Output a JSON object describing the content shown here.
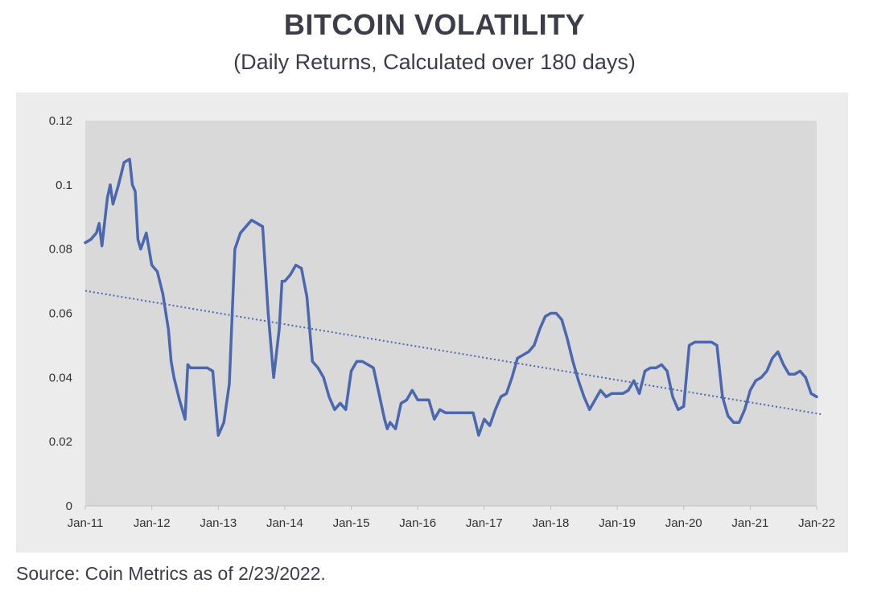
{
  "title": "BITCOIN VOLATILITY",
  "subtitle": "(Daily Returns, Calculated over 180 days)",
  "source": "Source: Coin Metrics as of 2/23/2022.",
  "colors": {
    "series": "#4a67b0",
    "trendline": "#4a67b0",
    "plot_background": "#d9d9d9",
    "panel_background": "#ececec"
  },
  "chart_data": {
    "type": "line",
    "title": "BITCOIN VOLATILITY",
    "subtitle": "(Daily Returns, Calculated over 180 days)",
    "xlabel": "",
    "ylabel": "",
    "ylim": [
      0,
      0.12
    ],
    "yticks": [
      0,
      0.02,
      0.04,
      0.06,
      0.08,
      0.1,
      0.12
    ],
    "ytick_labels": [
      "0",
      "0.02",
      "0.04",
      "0.06",
      "0.08",
      "0.1",
      "0.12"
    ],
    "xticks": [
      "Jan-11",
      "Jan-12",
      "Jan-13",
      "Jan-14",
      "Jan-15",
      "Jan-16",
      "Jan-17",
      "Jan-18",
      "Jan-19",
      "Jan-20",
      "Jan-21",
      "Jan-22"
    ],
    "xlim": [
      "Jan-11",
      "Jan-22"
    ],
    "grid": false,
    "legend": "none",
    "series": [
      {
        "values": [
          [
            "Jan-11",
            0.082
          ],
          [
            "Feb-11",
            0.083
          ],
          [
            "Mar-11",
            0.085
          ],
          [
            "Mar-11",
            0.088
          ],
          [
            "Apr-11",
            0.081
          ],
          [
            "May-11",
            0.096
          ],
          [
            "May-11",
            0.1
          ],
          [
            "Jun-11",
            0.094
          ],
          [
            "Jul-11",
            0.1
          ],
          [
            "Aug-11",
            0.107
          ],
          [
            "Sep-11",
            0.108
          ],
          [
            "Sep-11",
            0.1
          ],
          [
            "Oct-11",
            0.098
          ],
          [
            "Oct-11",
            0.083
          ],
          [
            "Nov-11",
            0.08
          ],
          [
            "Dec-11",
            0.085
          ],
          [
            "Jan-12",
            0.075
          ],
          [
            "Feb-12",
            0.073
          ],
          [
            "Mar-12",
            0.066
          ],
          [
            "Apr-12",
            0.055
          ],
          [
            "Apr-12",
            0.045
          ],
          [
            "May-12",
            0.04
          ],
          [
            "Jun-12",
            0.033
          ],
          [
            "Jul-12",
            0.027
          ],
          [
            "Jul-12",
            0.044
          ],
          [
            "Aug-12",
            0.043
          ],
          [
            "Sep-12",
            0.043
          ],
          [
            "Oct-12",
            0.043
          ],
          [
            "Nov-12",
            0.043
          ],
          [
            "Dec-12",
            0.042
          ],
          [
            "Jan-13",
            0.022
          ],
          [
            "Feb-13",
            0.026
          ],
          [
            "Mar-13",
            0.038
          ],
          [
            "Apr-13",
            0.08
          ],
          [
            "May-13",
            0.085
          ],
          [
            "Jun-13",
            0.087
          ],
          [
            "Jul-13",
            0.089
          ],
          [
            "Aug-13",
            0.088
          ],
          [
            "Sep-13",
            0.087
          ],
          [
            "Oct-13",
            0.06
          ],
          [
            "Nov-13",
            0.04
          ],
          [
            "Dec-13",
            0.055
          ],
          [
            "Dec-13",
            0.07
          ],
          [
            "Jan-14",
            0.07
          ],
          [
            "Feb-14",
            0.072
          ],
          [
            "Mar-14",
            0.075
          ],
          [
            "Apr-14",
            0.074
          ],
          [
            "May-14",
            0.065
          ],
          [
            "Jun-14",
            0.045
          ],
          [
            "Jul-14",
            0.043
          ],
          [
            "Aug-14",
            0.04
          ],
          [
            "Sep-14",
            0.034
          ],
          [
            "Oct-14",
            0.03
          ],
          [
            "Nov-14",
            0.032
          ],
          [
            "Dec-14",
            0.03
          ],
          [
            "Jan-15",
            0.042
          ],
          [
            "Feb-15",
            0.045
          ],
          [
            "Mar-15",
            0.045
          ],
          [
            "Apr-15",
            0.044
          ],
          [
            "May-15",
            0.043
          ],
          [
            "Jun-15",
            0.035
          ],
          [
            "Jul-15",
            0.027
          ],
          [
            "Jul-15",
            0.024
          ],
          [
            "Aug-15",
            0.026
          ],
          [
            "Sep-15",
            0.024
          ],
          [
            "Oct-15",
            0.032
          ],
          [
            "Nov-15",
            0.033
          ],
          [
            "Dec-15",
            0.036
          ],
          [
            "Jan-16",
            0.033
          ],
          [
            "Feb-16",
            0.033
          ],
          [
            "Mar-16",
            0.033
          ],
          [
            "Apr-16",
            0.027
          ],
          [
            "May-16",
            0.03
          ],
          [
            "Jun-16",
            0.029
          ],
          [
            "Jul-16",
            0.029
          ],
          [
            "Aug-16",
            0.029
          ],
          [
            "Sep-16",
            0.029
          ],
          [
            "Oct-16",
            0.029
          ],
          [
            "Nov-16",
            0.029
          ],
          [
            "Dec-16",
            0.022
          ],
          [
            "Jan-17",
            0.027
          ],
          [
            "Feb-17",
            0.025
          ],
          [
            "Mar-17",
            0.03
          ],
          [
            "Apr-17",
            0.034
          ],
          [
            "May-17",
            0.035
          ],
          [
            "Jun-17",
            0.04
          ],
          [
            "Jul-17",
            0.046
          ],
          [
            "Aug-17",
            0.047
          ],
          [
            "Sep-17",
            0.048
          ],
          [
            "Oct-17",
            0.05
          ],
          [
            "Nov-17",
            0.055
          ],
          [
            "Dec-17",
            0.059
          ],
          [
            "Jan-18",
            0.06
          ],
          [
            "Feb-18",
            0.06
          ],
          [
            "Mar-18",
            0.058
          ],
          [
            "Apr-18",
            0.052
          ],
          [
            "May-18",
            0.045
          ],
          [
            "Jun-18",
            0.039
          ],
          [
            "Jul-18",
            0.034
          ],
          [
            "Aug-18",
            0.03
          ],
          [
            "Sep-18",
            0.033
          ],
          [
            "Oct-18",
            0.036
          ],
          [
            "Nov-18",
            0.034
          ],
          [
            "Dec-18",
            0.035
          ],
          [
            "Jan-19",
            0.035
          ],
          [
            "Feb-19",
            0.035
          ],
          [
            "Mar-19",
            0.036
          ],
          [
            "Apr-19",
            0.039
          ],
          [
            "May-19",
            0.035
          ],
          [
            "Jun-19",
            0.042
          ],
          [
            "Jul-19",
            0.043
          ],
          [
            "Aug-19",
            0.043
          ],
          [
            "Sep-19",
            0.044
          ],
          [
            "Oct-19",
            0.042
          ],
          [
            "Nov-19",
            0.034
          ],
          [
            "Dec-19",
            0.03
          ],
          [
            "Jan-20",
            0.031
          ],
          [
            "Feb-20",
            0.05
          ],
          [
            "Mar-20",
            0.051
          ],
          [
            "Apr-20",
            0.051
          ],
          [
            "May-20",
            0.051
          ],
          [
            "Jun-20",
            0.051
          ],
          [
            "Jul-20",
            0.05
          ],
          [
            "Aug-20",
            0.034
          ],
          [
            "Sep-20",
            0.028
          ],
          [
            "Oct-20",
            0.026
          ],
          [
            "Nov-20",
            0.026
          ],
          [
            "Dec-20",
            0.03
          ],
          [
            "Jan-21",
            0.036
          ],
          [
            "Feb-21",
            0.039
          ],
          [
            "Mar-21",
            0.04
          ],
          [
            "Apr-21",
            0.042
          ],
          [
            "May-21",
            0.046
          ],
          [
            "Jun-21",
            0.048
          ],
          [
            "Jul-21",
            0.044
          ],
          [
            "Aug-21",
            0.041
          ],
          [
            "Sep-21",
            0.041
          ],
          [
            "Oct-21",
            0.042
          ],
          [
            "Nov-21",
            0.04
          ],
          [
            "Dec-21",
            0.035
          ],
          [
            "Jan-22",
            0.034
          ],
          [
            "Feb-22",
            0.034
          ]
        ]
      }
    ],
    "trendline": {
      "style": "dotted",
      "start": [
        "Jan-11",
        0.067
      ],
      "end": [
        "Feb-22",
        0.0285
      ]
    }
  }
}
